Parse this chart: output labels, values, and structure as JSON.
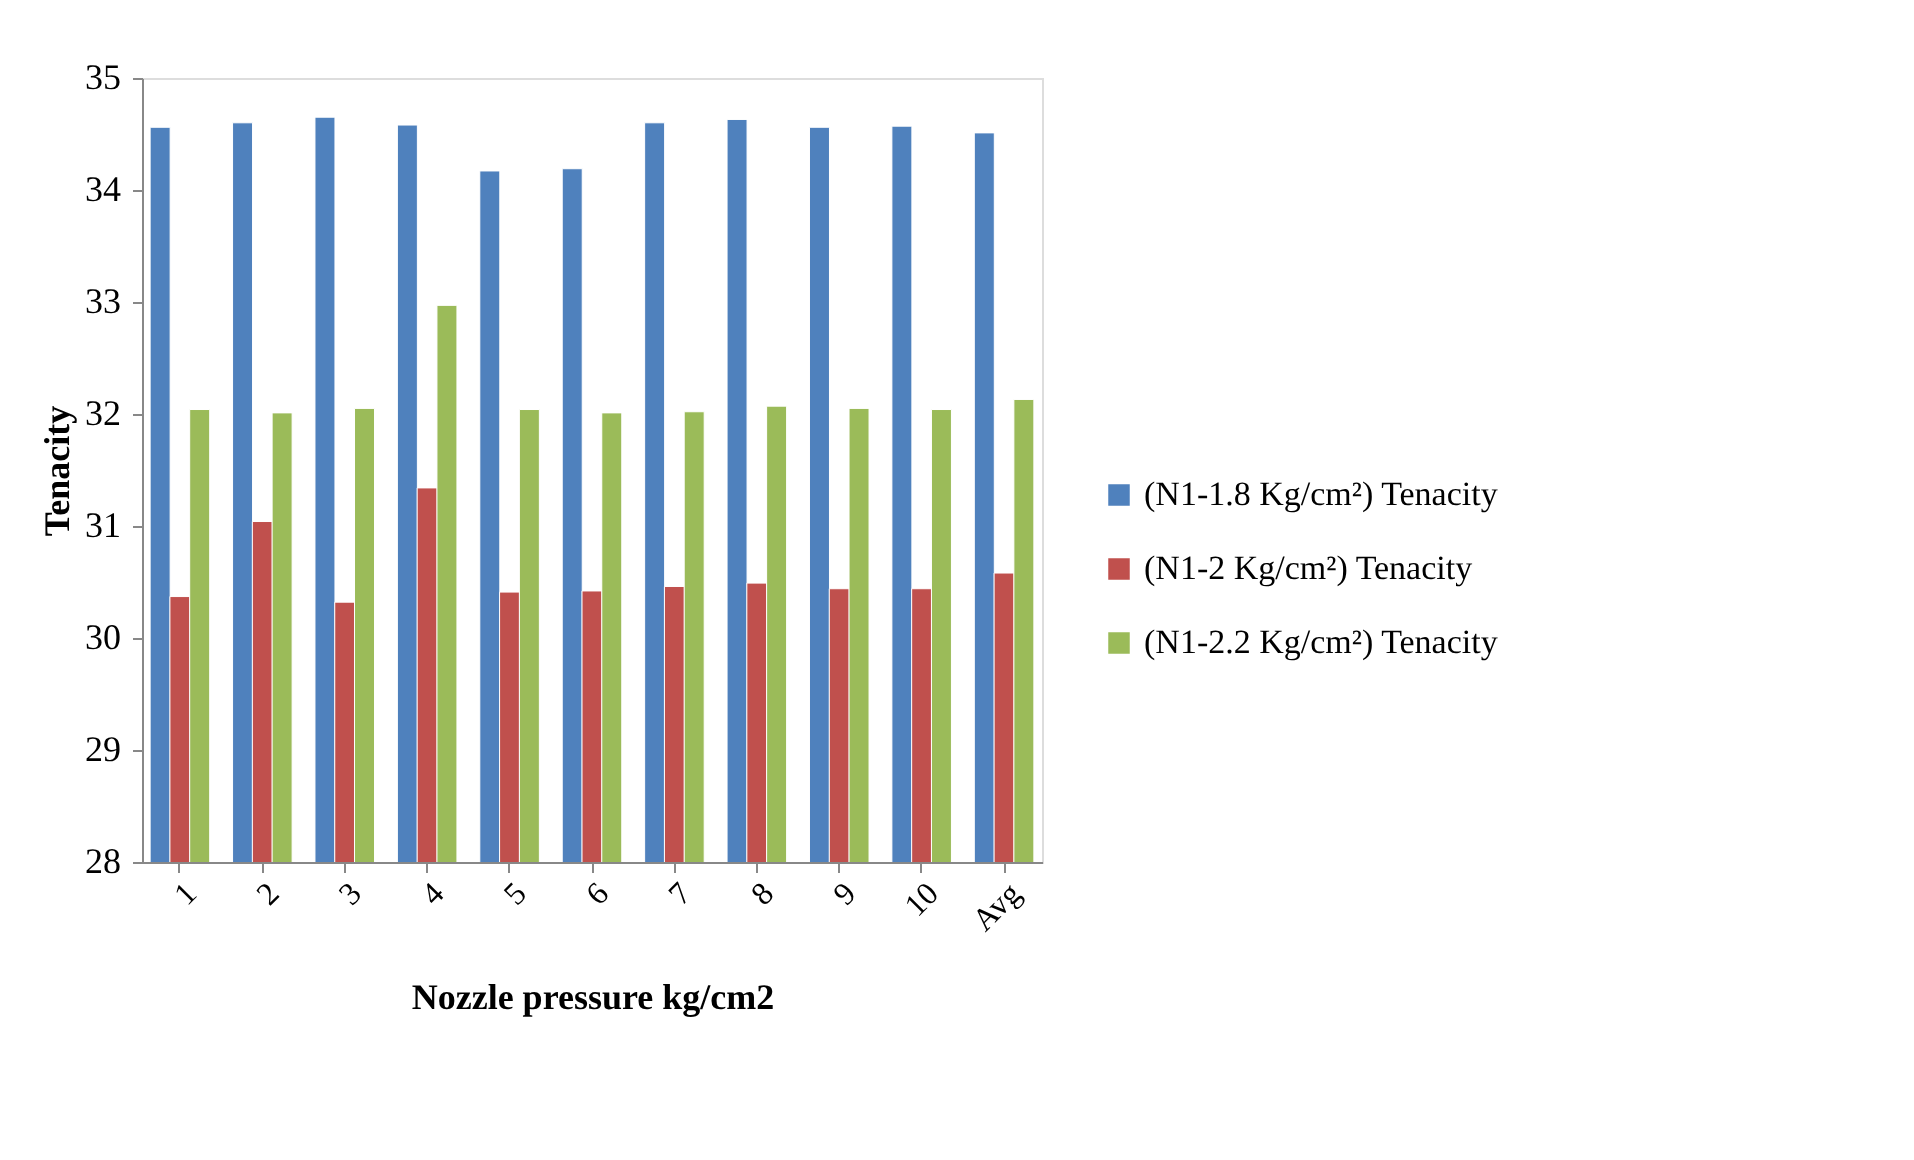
{
  "chart_data": {
    "type": "bar",
    "xlabel": "Nozzle pressure kg/cm2",
    "ylabel": "Tenacity",
    "categories": [
      "1",
      "2",
      "3",
      "4",
      "5",
      "6",
      "7",
      "8",
      "9",
      "10",
      "Avg"
    ],
    "series": [
      {
        "name": "(N1-1.8 Kg/cm²) Tenacity",
        "color": "#4f81bd",
        "values": [
          34.56,
          34.6,
          34.65,
          34.58,
          34.17,
          34.19,
          34.6,
          34.63,
          34.56,
          34.57,
          34.51
        ]
      },
      {
        "name": "(N1-2 Kg/cm²) Tenacity",
        "color": "#c0504d",
        "values": [
          30.37,
          31.04,
          30.32,
          31.34,
          30.41,
          30.42,
          30.46,
          30.49,
          30.44,
          30.44,
          30.58
        ]
      },
      {
        "name": "(N1-2.2 Kg/cm²) Tenacity",
        "color": "#9bbb59",
        "values": [
          32.04,
          32.01,
          32.05,
          32.97,
          32.04,
          32.01,
          32.02,
          32.07,
          32.05,
          32.04,
          32.13
        ]
      }
    ],
    "ylim": [
      28,
      35
    ],
    "yticks": [
      28,
      29,
      30,
      31,
      32,
      33,
      34,
      35
    ],
    "grid": false,
    "legend": "right"
  }
}
